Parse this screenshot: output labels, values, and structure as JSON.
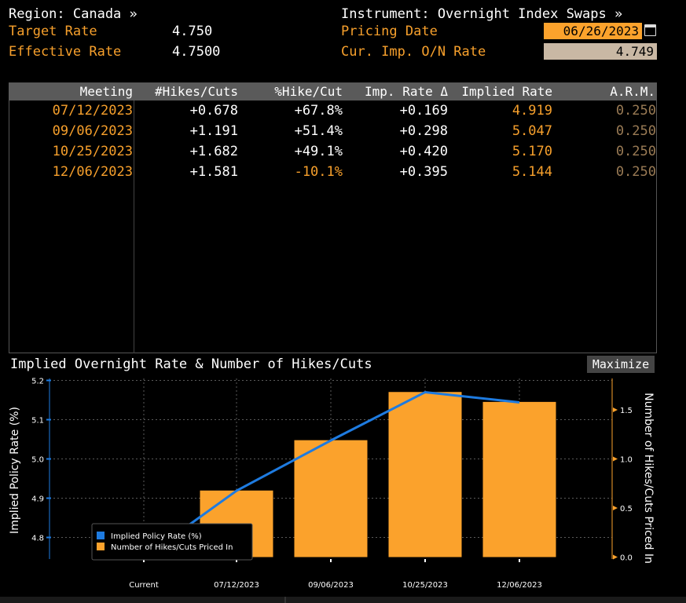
{
  "header": {
    "region_label": "Region: Canada »",
    "instrument_label": "Instrument: Overnight Index Swaps »",
    "target_rate_label": "Target Rate",
    "target_rate_value": "4.750",
    "effective_rate_label": "Effective Rate",
    "effective_rate_value": "4.7500",
    "pricing_date_label": "Pricing Date",
    "pricing_date_value": "06/26/2023",
    "cur_imp_label": "Cur. Imp. O/N Rate",
    "cur_imp_value": "4.749"
  },
  "table": {
    "columns": [
      "Meeting",
      "#Hikes/Cuts",
      "%Hike/Cut",
      "Imp. Rate Δ",
      "Implied Rate",
      "A.R.M."
    ],
    "rows": [
      {
        "meeting": "07/12/2023",
        "hikes": "+0.678",
        "pct": "+67.8%",
        "delta": "+0.169",
        "implied": "4.919",
        "arm": "0.250",
        "pct_negative": false
      },
      {
        "meeting": "09/06/2023",
        "hikes": "+1.191",
        "pct": "+51.4%",
        "delta": "+0.298",
        "implied": "5.047",
        "arm": "0.250",
        "pct_negative": false
      },
      {
        "meeting": "10/25/2023",
        "hikes": "+1.682",
        "pct": "+49.1%",
        "delta": "+0.420",
        "implied": "5.170",
        "arm": "0.250",
        "pct_negative": false
      },
      {
        "meeting": "12/06/2023",
        "hikes": "+1.581",
        "pct": "-10.1%",
        "delta": "+0.395",
        "implied": "5.144",
        "arm": "0.250",
        "pct_negative": true
      }
    ]
  },
  "chart_panel": {
    "title": "Implied Overnight Rate & Number of Hikes/Cuts",
    "maximize_label": "Maximize"
  },
  "colors": {
    "orange": "#f7a02c",
    "bar": "#fba22c",
    "line": "#1e7be0",
    "header_bg": "#5a5a5a"
  },
  "chart_data": {
    "type": "bar",
    "categories": [
      "Current",
      "07/12/2023",
      "09/06/2023",
      "10/25/2023",
      "12/06/2023"
    ],
    "series": [
      {
        "name": "Implied Policy Rate (%)",
        "type": "line",
        "axis": "left",
        "values": [
          4.749,
          4.919,
          5.047,
          5.17,
          5.144
        ]
      },
      {
        "name": "Number of Hikes/Cuts Priced In",
        "type": "bar",
        "axis": "right",
        "values": [
          null,
          0.678,
          1.191,
          1.682,
          1.581
        ]
      }
    ],
    "ylabel": "Implied Policy Rate (%)",
    "y2label": "Number of Hikes/Cuts Priced In",
    "ylim": [
      4.745,
      5.205
    ],
    "y2lim": [
      -0.02,
      1.82
    ],
    "yticks": [
      "4.8",
      "4.9",
      "5.0",
      "5.1",
      "5.2"
    ],
    "y2ticks": [
      "0.0",
      "0.5",
      "1.0",
      "1.5"
    ],
    "grid": true,
    "legend": "bottom-left"
  }
}
